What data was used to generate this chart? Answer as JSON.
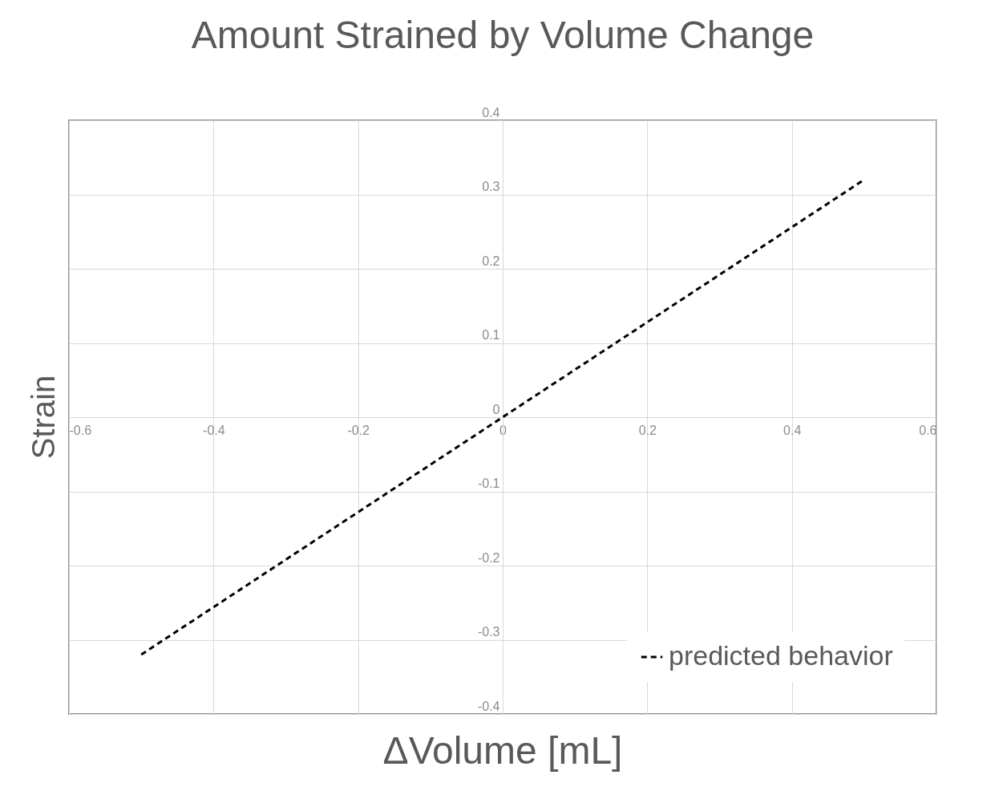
{
  "chart_data": {
    "type": "line",
    "title": "Amount Strained by Volume Change",
    "xlabel": "ΔVolume [mL]",
    "ylabel": "Strain",
    "x": [
      -0.5,
      0,
      0.5
    ],
    "series": [
      {
        "name": "predicted behavior",
        "color": "#000000",
        "values": [
          -0.32,
          0,
          0.32
        ]
      }
    ],
    "xlim": [
      -0.6,
      0.6
    ],
    "xticks": [
      -0.6,
      -0.4,
      -0.2,
      0,
      0.2,
      0.4,
      0.6
    ],
    "ylim": [
      -0.4,
      0.4
    ],
    "yticks": [
      -0.4,
      -0.3,
      -0.2,
      -0.1,
      0,
      0.1,
      0.2,
      0.3,
      0.4
    ],
    "grid": true,
    "legend": "bottom right",
    "line_style": "dashed",
    "marker": "none"
  }
}
